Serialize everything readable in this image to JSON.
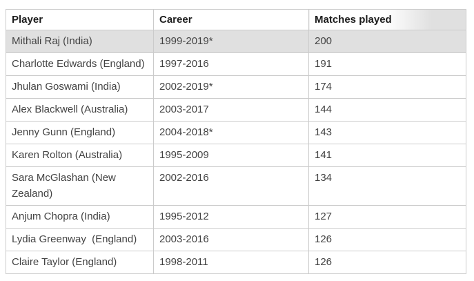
{
  "table": {
    "columns": [
      "Player",
      "Career",
      "Matches played"
    ],
    "highlighted_row_index": 0,
    "rows": [
      {
        "player": "Mithali Raj (India)",
        "career": "1999-2019*",
        "matches": "200"
      },
      {
        "player": "Charlotte Edwards (England)",
        "career": "1997-2016",
        "matches": "191"
      },
      {
        "player": "Jhulan Goswami (India)",
        "career": "2002-2019*",
        "matches": "174"
      },
      {
        "player": "Alex Blackwell (Australia)",
        "career": "2003-2017",
        "matches": "144"
      },
      {
        "player": "Jenny Gunn (England)",
        "career": "2004-2018*",
        "matches": "143"
      },
      {
        "player": "Karen Rolton (Australia)",
        "career": "1995-2009",
        "matches": "141"
      },
      {
        "player": "Sara McGlashan (New Zealand)",
        "career": "2002-2016",
        "matches": "134"
      },
      {
        "player": "Anjum Chopra (India)",
        "career": "1995-2012",
        "matches": "127"
      },
      {
        "player": "Lydia Greenway  (England)",
        "career": "2003-2016",
        "matches": "126"
      },
      {
        "player": "Claire Taylor (England)",
        "career": "1998-2011",
        "matches": "126"
      }
    ],
    "colors": {
      "highlight_row_bg": "#e0e0e0",
      "border": "#cbcbcb",
      "header_text": "#1c1c1c",
      "body_text": "#434343",
      "header_fade_bg": "#e0e0e0"
    }
  }
}
